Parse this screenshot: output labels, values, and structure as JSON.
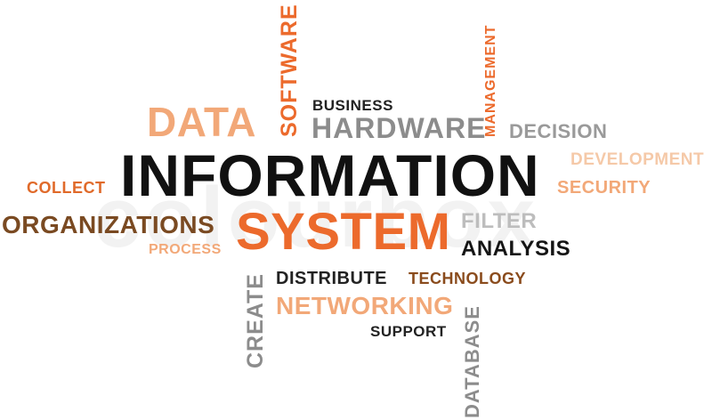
{
  "watermark": "colourbox",
  "colors": {
    "black": "#111111",
    "gray": "#8c8c8c",
    "light_gray": "#bdbdbd",
    "orange": "#ec6a2c",
    "light_orange": "#f2a878",
    "pale_orange": "#f5c9a8",
    "brown": "#8a4b1c",
    "dark_brown": "#7a4a22"
  },
  "words": {
    "information": "INFORMATION",
    "system": "SYSTEM",
    "data": "DATA",
    "software": "SOFTWARE",
    "business": "BUSINESS",
    "hardware": "HARDWARE",
    "management": "MANAGEMENT",
    "decision": "DECISION",
    "development": "DEVELOPMENT",
    "security": "SECURITY",
    "collect": "COLLECT",
    "organizations": "ORGANIZATIONS",
    "process": "PROCESS",
    "filter": "FILTER",
    "analysis": "ANALYSIS",
    "distribute": "DISTRIBUTE",
    "technology": "TECHNOLOGY",
    "networking": "NETWORKING",
    "support": "SUPPORT",
    "create": "CREATE",
    "database": "DATABASE"
  }
}
